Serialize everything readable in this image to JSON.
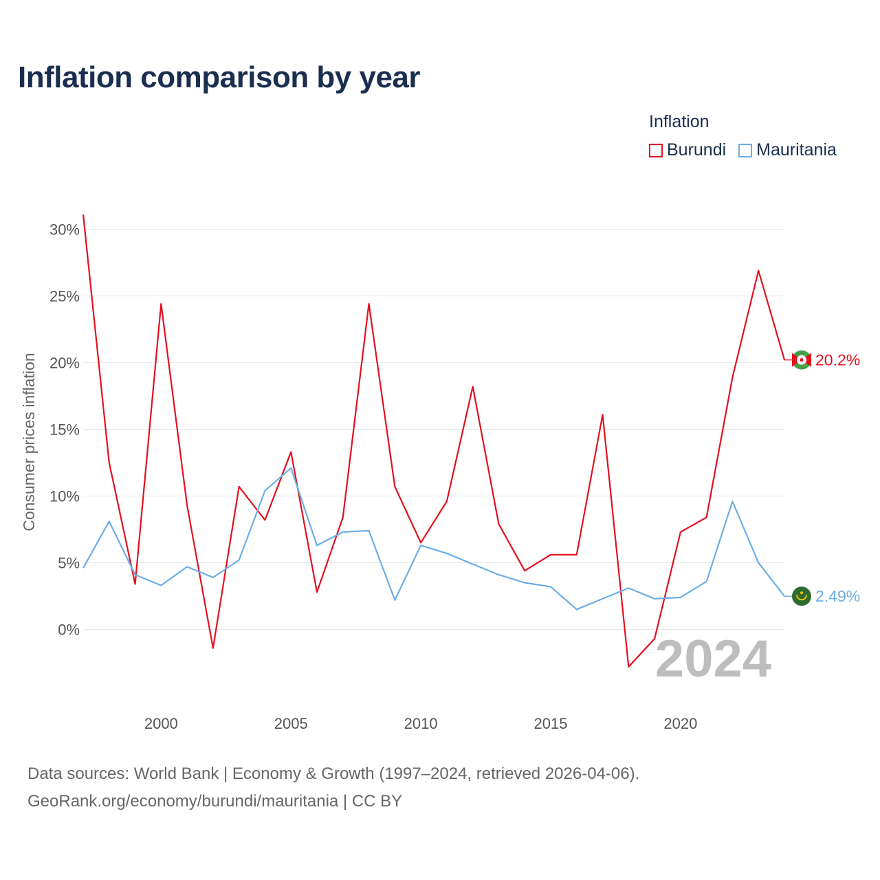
{
  "chart_data": {
    "type": "line",
    "title": "Inflation comparison by year",
    "legend_title": "Inflation",
    "ylabel": "Consumer prices inflation",
    "xlabel": "",
    "year_watermark": "2024",
    "x": [
      1997,
      1998,
      1999,
      2000,
      2001,
      2002,
      2003,
      2004,
      2005,
      2006,
      2007,
      2008,
      2009,
      2010,
      2011,
      2012,
      2013,
      2014,
      2015,
      2016,
      2017,
      2018,
      2019,
      2020,
      2021,
      2022,
      2023,
      2024
    ],
    "xlim": [
      1997,
      2024
    ],
    "ylim": [
      -4.97,
      31.1
    ],
    "x_ticks": [
      2000,
      2005,
      2010,
      2015,
      2020
    ],
    "y_ticks": [
      0,
      5,
      10,
      15,
      20,
      25,
      30
    ],
    "y_tick_labels": [
      "0%",
      "5%",
      "10%",
      "15%",
      "20%",
      "25%",
      "30%"
    ],
    "series": [
      {
        "name": "Burundi",
        "color": "#e3101f",
        "end_label": "20.2%",
        "values": [
          31.1,
          12.5,
          3.4,
          24.4,
          9.3,
          -1.4,
          10.7,
          8.2,
          13.3,
          2.8,
          8.4,
          24.4,
          10.7,
          6.5,
          9.6,
          18.2,
          7.9,
          4.4,
          5.6,
          5.6,
          16.1,
          -2.8,
          -0.7,
          7.3,
          8.4,
          18.9,
          26.9,
          20.2
        ]
      },
      {
        "name": "Mauritania",
        "color": "#6aaee6",
        "end_label": "2.49%",
        "values": [
          4.6,
          8.1,
          4.1,
          3.3,
          4.7,
          3.9,
          5.2,
          10.4,
          12.1,
          6.3,
          7.3,
          7.4,
          2.2,
          6.3,
          5.7,
          4.9,
          4.1,
          3.5,
          3.2,
          1.5,
          2.3,
          3.1,
          2.3,
          2.4,
          3.6,
          9.6,
          5.0,
          2.49
        ]
      }
    ]
  },
  "footer": {
    "line1": "Data sources: World Bank | Economy & Growth (1997–2024, retrieved 2026-04-06).",
    "line2": "GeoRank.org/economy/burundi/mauritania | CC BY"
  }
}
